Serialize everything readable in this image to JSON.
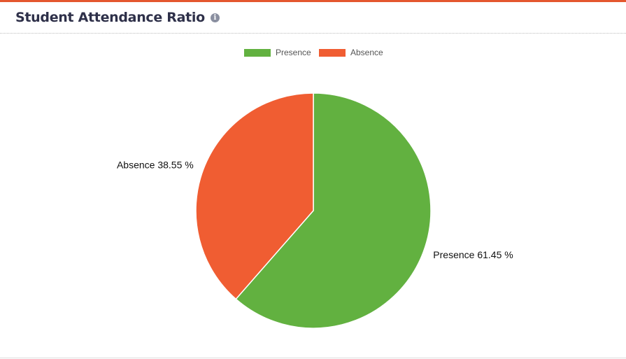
{
  "chart_data": {
    "type": "pie",
    "title": "Student Attendance Ratio",
    "categories": [
      "Presence",
      "Absence"
    ],
    "values": [
      61.45,
      38.55
    ],
    "value_labels": [
      "Presence 61.45 %",
      "Absence 38.55 %"
    ],
    "colors": [
      "#62b140",
      "#f05d32"
    ],
    "legend": "top"
  }
}
